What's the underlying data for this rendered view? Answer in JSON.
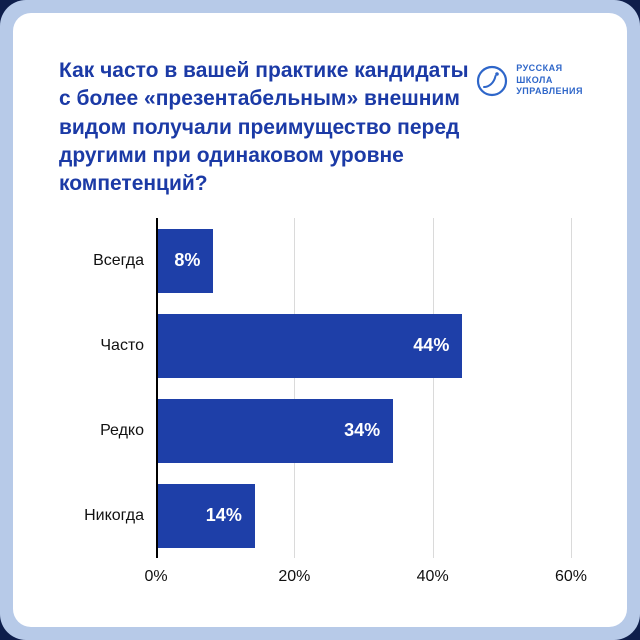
{
  "brand": {
    "logo_lines": [
      "РУССКАЯ",
      "ШКОЛА",
      "УПРАВЛЕНИЯ"
    ]
  },
  "title": {
    "lines": [
      "Как часто в вашей практике кандидаты",
      "с более «презентабельным» внешним",
      "видом получали преимущество перед",
      "другими при одинаковом уровне компетенций?"
    ]
  },
  "colors": {
    "bar": "#1e3fa8",
    "title": "#1b3aa6",
    "logo": "#2e66c9",
    "frame": "#b7cae8",
    "gridline": "#dadada"
  },
  "chart_data": {
    "type": "bar",
    "orientation": "horizontal",
    "title": "Как часто в вашей практике кандидаты с более «презентабельным» внешним видом получали преимущество перед другими при одинаковом уровне компетенций?",
    "categories": [
      "Всегда",
      "Часто",
      "Редко",
      "Никогда"
    ],
    "values": [
      8,
      44,
      34,
      14
    ],
    "value_labels": [
      "8%",
      "44%",
      "34%",
      "14%"
    ],
    "xlim": [
      0,
      60
    ],
    "x_tick_values": [
      0,
      20,
      40,
      60
    ],
    "x_tick_labels": [
      "0%",
      "20%",
      "40%",
      "60%"
    ],
    "grid": "vertical-light",
    "legend": "none"
  }
}
